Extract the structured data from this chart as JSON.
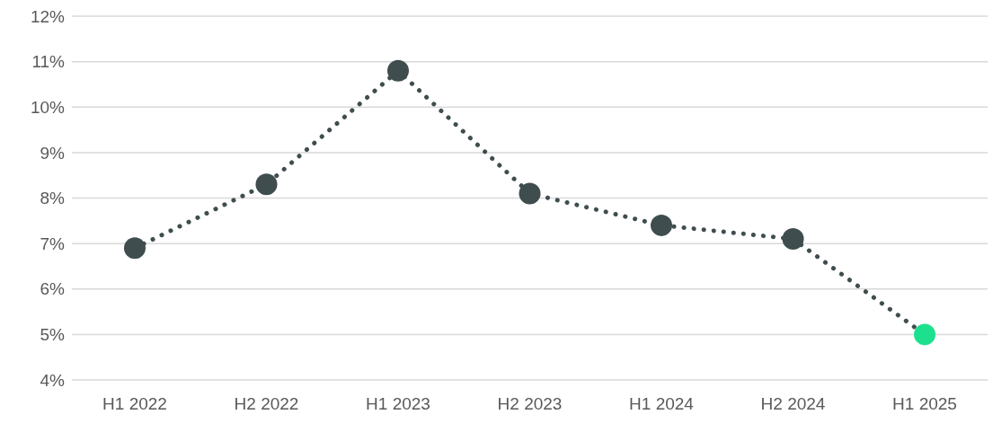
{
  "chart_data": {
    "type": "line",
    "categories": [
      "H1 2022",
      "H2 2022",
      "H1 2023",
      "H2 2023",
      "H1 2024",
      "H2 2024",
      "H1 2025"
    ],
    "series": [
      {
        "color": "#3f4d4f",
        "colors": [
          "#3f4d4f",
          "#3f4d4f",
          "#3f4d4f",
          "#3f4d4f",
          "#3f4d4f",
          "#3f4d4f",
          "#1de08f"
        ],
        "values": [
          6.9,
          8.3,
          10.8,
          8.1,
          7.4,
          7.1,
          5.0
        ]
      }
    ],
    "ylim": [
      4,
      12
    ],
    "yticks": [
      {
        "value": 4,
        "label": "4%"
      },
      {
        "value": 5,
        "label": "5%"
      },
      {
        "value": 6,
        "label": "6%"
      },
      {
        "value": 7,
        "label": "7%"
      },
      {
        "value": 8,
        "label": "8%"
      },
      {
        "value": 9,
        "label": "9%"
      },
      {
        "value": 10,
        "label": "10%"
      },
      {
        "value": 11,
        "label": "11%"
      },
      {
        "value": 12,
        "label": "12%"
      }
    ],
    "grid": "y",
    "marker": "circle",
    "line_style": "dotted",
    "legend": false
  }
}
